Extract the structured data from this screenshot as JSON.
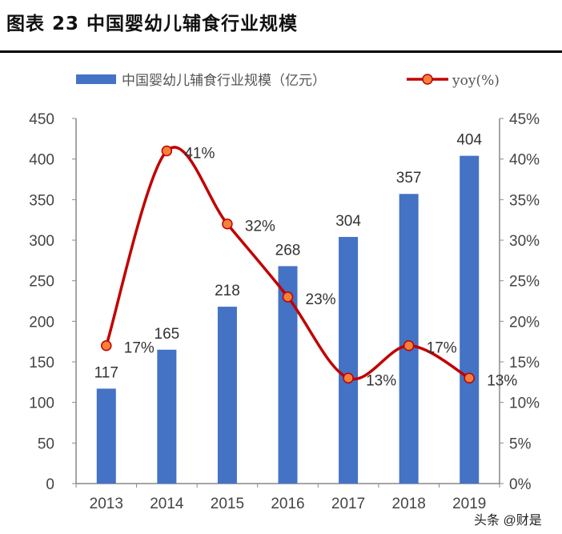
{
  "title": "图表 23 中国婴幼儿辅食行业规模",
  "watermark": "头条 @财是",
  "colors": {
    "bar": "#4472C4",
    "line": "#C00000",
    "marker_fill": "#F4803A"
  },
  "chart_data": {
    "type": "bar+line",
    "categories": [
      "2013",
      "2014",
      "2015",
      "2016",
      "2017",
      "2018",
      "2019"
    ],
    "series": [
      {
        "name": "中国婴幼儿辅食行业规模（亿元）",
        "type": "bar",
        "axis": "left",
        "values": [
          117,
          165,
          218,
          268,
          304,
          357,
          404
        ],
        "labels": [
          "117",
          "165",
          "218",
          "268",
          "304",
          "357",
          "404"
        ]
      },
      {
        "name": "yoy(%)",
        "type": "line",
        "smooth": true,
        "axis": "right",
        "values": [
          17,
          41,
          32,
          23,
          13,
          17,
          13
        ],
        "labels": [
          "17%",
          "41%",
          "32%",
          "23%",
          "13%",
          "17%",
          "13%"
        ]
      }
    ],
    "y_left": {
      "range": [
        0,
        450
      ],
      "ticks": [
        "0",
        "50",
        "100",
        "150",
        "200",
        "250",
        "300",
        "350",
        "400",
        "450"
      ]
    },
    "y_right": {
      "range": [
        0,
        45
      ],
      "ticks": [
        "0%",
        "5%",
        "10%",
        "15%",
        "20%",
        "25%",
        "30%",
        "35%",
        "40%",
        "45%"
      ]
    },
    "grid": false,
    "legend": "top"
  }
}
